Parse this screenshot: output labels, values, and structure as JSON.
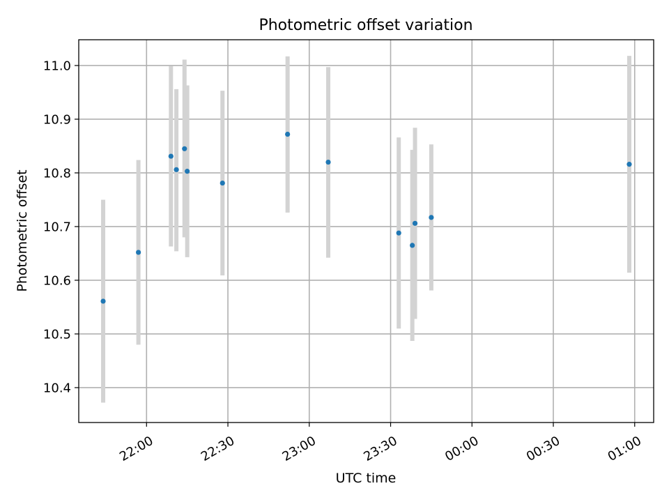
{
  "chart_data": {
    "type": "scatter",
    "title": "Photometric offset variation",
    "xlabel": "UTC time",
    "ylabel": "Photometric offset",
    "x_axis": "time",
    "xlim": [
      "21:35",
      "01:07"
    ],
    "ylim": [
      10.335,
      11.048
    ],
    "xticks": [
      "22:00",
      "22:30",
      "23:00",
      "23:30",
      "00:00",
      "00:30",
      "01:00"
    ],
    "xtick_minutes_after_midnight_start": [
      1320,
      1350,
      1380,
      1410,
      1440,
      1470,
      1500
    ],
    "yticks": [
      10.4,
      10.5,
      10.6,
      10.7,
      10.8,
      10.9,
      11.0
    ],
    "ytick_labels": [
      "10.4",
      "10.5",
      "10.6",
      "10.7",
      "10.8",
      "10.9",
      "11.0"
    ],
    "grid": true,
    "point_color": "#1f77b4",
    "errorbar_color": "#d3d3d3",
    "points": [
      {
        "time": "21:44",
        "value": 10.561,
        "low": 10.372,
        "high": 10.75
      },
      {
        "time": "21:57",
        "value": 10.652,
        "low": 10.48,
        "high": 10.824
      },
      {
        "time": "22:09",
        "value": 10.831,
        "low": 10.663,
        "high": 10.999
      },
      {
        "time": "22:11",
        "value": 10.806,
        "low": 10.654,
        "high": 10.956
      },
      {
        "time": "22:14",
        "value": 10.845,
        "low": 10.68,
        "high": 11.011
      },
      {
        "time": "22:15",
        "value": 10.803,
        "low": 10.643,
        "high": 10.963
      },
      {
        "time": "22:28",
        "value": 10.781,
        "low": 10.609,
        "high": 10.953
      },
      {
        "time": "22:52",
        "value": 10.872,
        "low": 10.726,
        "high": 11.017
      },
      {
        "time": "23:07",
        "value": 10.82,
        "low": 10.642,
        "high": 10.997
      },
      {
        "time": "23:33",
        "value": 10.688,
        "low": 10.51,
        "high": 10.866
      },
      {
        "time": "23:38",
        "value": 10.665,
        "low": 10.487,
        "high": 10.843
      },
      {
        "time": "23:39",
        "value": 10.706,
        "low": 10.528,
        "high": 10.884
      },
      {
        "time": "23:45",
        "value": 10.717,
        "low": 10.581,
        "high": 10.853
      },
      {
        "time": "00:58",
        "value": 10.816,
        "low": 10.614,
        "high": 11.018
      }
    ]
  }
}
